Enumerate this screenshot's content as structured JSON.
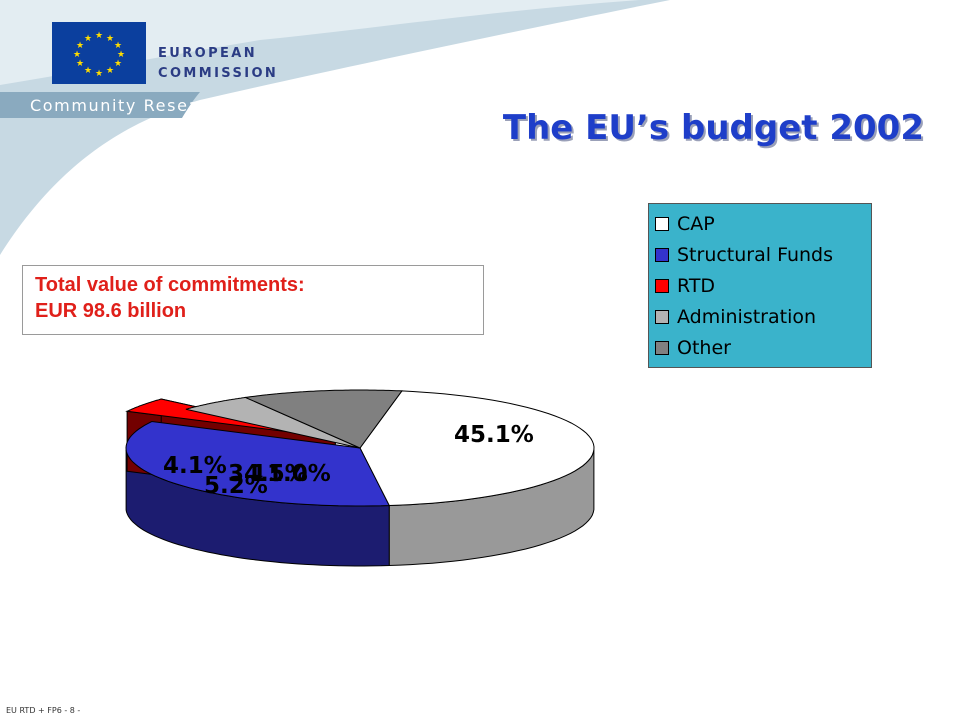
{
  "header": {
    "org_line1": "EUROPEAN",
    "org_line2": "COMMISSION",
    "department": "Community Research"
  },
  "slide": {
    "title": "The EU’s budget 2002",
    "summary_line1": "Total value of commitments:",
    "summary_line2": "EUR 98.6 billion",
    "footer": "EU RTD + FP6 - 8 -"
  },
  "colors": {
    "title": "#1e3ec9",
    "summary_text": "#e0201a",
    "legend_bg": "#3ab3cb",
    "header_band": "#c7d9e3"
  },
  "chart_data": {
    "type": "pie",
    "title": "",
    "legend_position": "top-right",
    "categories": [
      "CAP",
      "Structural Funds",
      "RTD",
      "Administration",
      "Other"
    ],
    "values": [
      45.1,
      34.5,
      4.1,
      5.2,
      11.0
    ],
    "value_labels": [
      "45.1%",
      "34.5%",
      "4.1%",
      "5.2%",
      "11.0%"
    ],
    "colors": [
      "#ffffff",
      "#3333cc",
      "#ff0000",
      "#b3b3b3",
      "#808080"
    ],
    "exploded": [
      "RTD"
    ]
  }
}
